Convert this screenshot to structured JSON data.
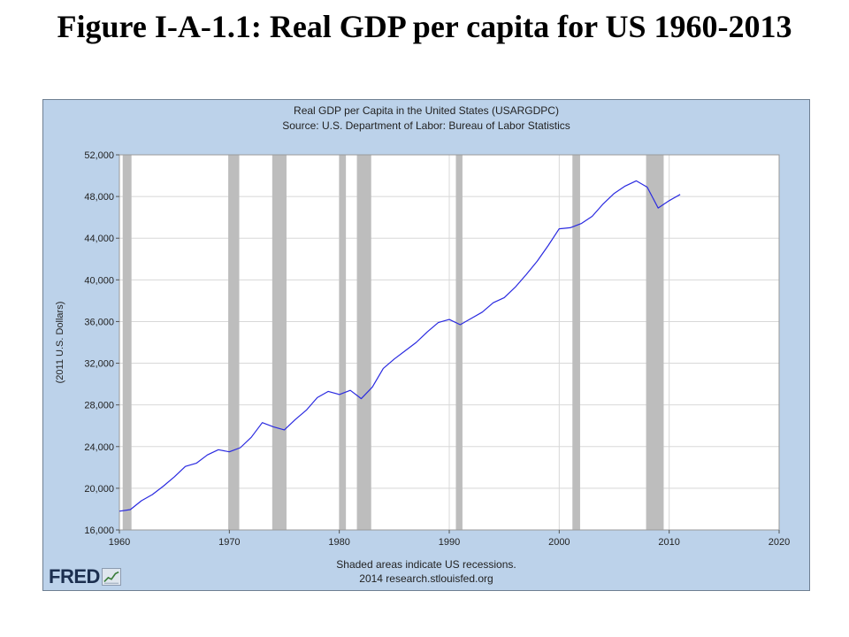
{
  "slide": {
    "title": "Figure I-A-1.1: Real GDP per capita for US 1960-2013"
  },
  "brand": {
    "logo_text": "FRED",
    "logo_icon": "chart-line-icon"
  },
  "footnote": {
    "line1": "Shaded areas indicate US recessions.",
    "line2": "2014 research.stlouisfed.org"
  },
  "chart_data": {
    "type": "line",
    "title": "Real GDP per Capita in the United States (USARGDPC)",
    "subtitle": "Source: U.S. Department of Labor: Bureau of Labor Statistics",
    "xlabel": "",
    "ylabel": "(2011 U.S. Dollars)",
    "xlim": [
      1960,
      2020
    ],
    "ylim": [
      16000,
      52000
    ],
    "x_ticks": [
      1960,
      1970,
      1980,
      1990,
      2000,
      2010,
      2020
    ],
    "y_ticks": [
      16000,
      20000,
      24000,
      28000,
      32000,
      36000,
      40000,
      44000,
      48000,
      52000
    ],
    "y_tick_labels": [
      "16,000",
      "20,000",
      "24,000",
      "28,000",
      "32,000",
      "36,000",
      "40,000",
      "44,000",
      "48,000",
      "52,000"
    ],
    "grid": true,
    "colors": {
      "line": "#2a2ae0",
      "recession": "#bdbdbd",
      "plot_bg": "#ffffff",
      "panel_bg": "#bcd2ea",
      "grid": "#d8d8d8"
    },
    "recessions": [
      [
        1960.3,
        1961.1
      ],
      [
        1969.9,
        1970.9
      ],
      [
        1973.9,
        1975.2
      ],
      [
        1980.0,
        1980.6
      ],
      [
        1981.6,
        1982.9
      ],
      [
        1990.6,
        1991.2
      ],
      [
        2001.2,
        2001.9
      ],
      [
        2007.9,
        2009.5
      ]
    ],
    "series": [
      {
        "values": [
          [
            1960,
            17800
          ],
          [
            1961,
            17950
          ],
          [
            1962,
            18800
          ],
          [
            1963,
            19400
          ],
          [
            1964,
            20200
          ],
          [
            1965,
            21100
          ],
          [
            1966,
            22100
          ],
          [
            1967,
            22400
          ],
          [
            1968,
            23200
          ],
          [
            1969,
            23700
          ],
          [
            1970,
            23500
          ],
          [
            1971,
            23900
          ],
          [
            1972,
            24900
          ],
          [
            1973,
            26300
          ],
          [
            1974,
            25900
          ],
          [
            1975,
            25600
          ],
          [
            1976,
            26600
          ],
          [
            1977,
            27500
          ],
          [
            1978,
            28700
          ],
          [
            1979,
            29300
          ],
          [
            1980,
            29000
          ],
          [
            1981,
            29400
          ],
          [
            1982,
            28600
          ],
          [
            1983,
            29700
          ],
          [
            1984,
            31500
          ],
          [
            1985,
            32400
          ],
          [
            1986,
            33200
          ],
          [
            1987,
            34000
          ],
          [
            1988,
            35000
          ],
          [
            1989,
            35900
          ],
          [
            1990,
            36200
          ],
          [
            1991,
            35700
          ],
          [
            1992,
            36300
          ],
          [
            1993,
            36900
          ],
          [
            1994,
            37800
          ],
          [
            1995,
            38300
          ],
          [
            1996,
            39300
          ],
          [
            1997,
            40500
          ],
          [
            1998,
            41800
          ],
          [
            1999,
            43300
          ],
          [
            2000,
            44900
          ],
          [
            2001,
            45000
          ],
          [
            2002,
            45400
          ],
          [
            2003,
            46100
          ],
          [
            2004,
            47300
          ],
          [
            2005,
            48300
          ],
          [
            2006,
            49000
          ],
          [
            2007,
            49500
          ],
          [
            2008,
            48900
          ],
          [
            2009,
            46900
          ],
          [
            2010,
            47600
          ],
          [
            2011,
            48200
          ]
        ]
      }
    ]
  }
}
